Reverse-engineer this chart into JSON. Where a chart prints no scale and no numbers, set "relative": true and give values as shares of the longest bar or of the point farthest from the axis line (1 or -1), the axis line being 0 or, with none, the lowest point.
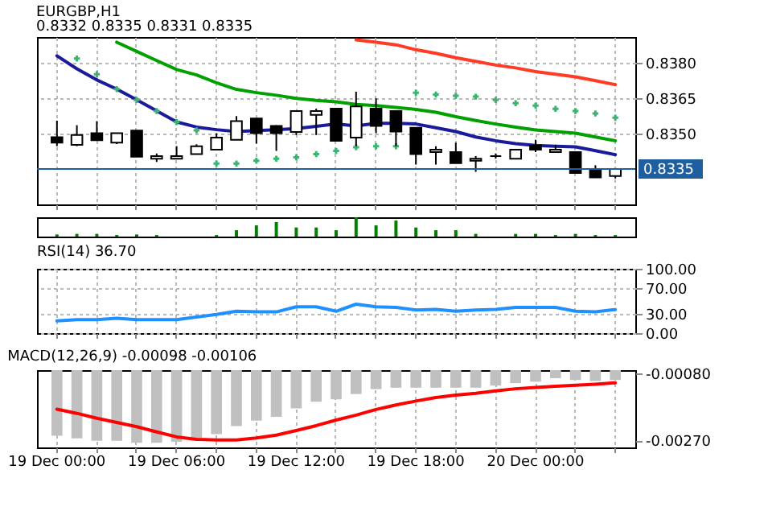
{
  "chart_data": [
    {
      "type": "candlestick",
      "title": "EURGBP,H1",
      "subtitle": "0.8332 0.8335 0.8331 0.8335",
      "categories": [
        null,
        null,
        null,
        null,
        null,
        null,
        null,
        null,
        null,
        null,
        null,
        null,
        null,
        null,
        null,
        null,
        null,
        null,
        null,
        null,
        null,
        null,
        null,
        null,
        null,
        null,
        null,
        null,
        null
      ],
      "ohlc": [
        [
          0.83485,
          0.83555,
          0.83447,
          0.83462
        ],
        [
          0.83453,
          0.83536,
          0.83447,
          0.83494
        ],
        [
          0.83502,
          0.83553,
          0.83472,
          0.83472
        ],
        [
          0.83462,
          0.83502,
          0.83456,
          0.83502
        ],
        [
          0.83513,
          0.83513,
          0.83402,
          0.83402
        ],
        [
          0.83394,
          0.83416,
          0.8338,
          0.83405
        ],
        [
          0.83394,
          0.83447,
          0.83394,
          0.83405
        ],
        [
          0.83413,
          0.83455,
          0.83413,
          0.83447
        ],
        [
          0.83432,
          0.83502,
          0.83432,
          0.83483
        ],
        [
          0.83474,
          0.83575,
          0.83474,
          0.83553
        ],
        [
          0.83564,
          0.83564,
          0.83458,
          0.83502
        ],
        [
          0.83533,
          0.83536,
          0.83427,
          0.83502
        ],
        [
          0.83507,
          0.83596,
          0.83494,
          0.83596
        ],
        [
          0.8358,
          0.83606,
          0.83494,
          0.83596
        ],
        [
          0.83606,
          0.83606,
          0.83466,
          0.8347
        ],
        [
          0.83483,
          0.83678,
          0.83447,
          0.83616
        ],
        [
          0.83606,
          0.8365,
          0.83502,
          0.83533
        ],
        [
          0.83596,
          0.83596,
          0.83447,
          0.83509
        ],
        [
          0.83525,
          0.83525,
          0.83369,
          0.83413
        ],
        [
          0.83422,
          0.83447,
          0.83369,
          0.83432
        ],
        [
          0.83422,
          0.83462,
          0.83375,
          0.83375
        ],
        [
          0.83385,
          0.83405,
          0.83338,
          0.83394
        ],
        [
          0.83405,
          0.83416,
          0.83394,
          0.83405
        ],
        [
          0.83394,
          0.83432,
          0.83394,
          0.83432
        ],
        [
          0.8345,
          0.83474,
          0.83422,
          0.83432
        ],
        [
          0.83422,
          0.83453,
          0.83419,
          0.83432
        ],
        [
          0.83422,
          0.83422,
          0.83333,
          0.83333
        ],
        [
          0.83344,
          0.83366,
          0.83314,
          0.83314
        ],
        [
          0.8332,
          0.8335,
          0.8331,
          0.8335
        ]
      ],
      "series": [
        {
          "type": "line",
          "color": "#1a1a9c",
          "values": [
            0.8383,
            0.83775,
            0.83728,
            0.83689,
            0.83644,
            0.83597,
            0.8355,
            0.83528,
            0.83517,
            0.83509,
            0.83513,
            0.83517,
            0.83522,
            0.83531,
            0.83541,
            0.83533,
            0.83544,
            0.83544,
            0.83541,
            0.83525,
            0.83509,
            0.83486,
            0.8347,
            0.83458,
            0.8345,
            0.83447,
            0.83444,
            0.83428,
            0.83411
          ]
        },
        {
          "type": "line",
          "color": "#00a000",
          "values": [
            null,
            null,
            null,
            0.83888,
            0.83849,
            0.8381,
            0.83772,
            0.83749,
            0.83716,
            0.83688,
            0.83674,
            0.83663,
            0.8365,
            0.83641,
            0.83635,
            0.83624,
            0.83619,
            0.83611,
            0.83603,
            0.83591,
            0.83572,
            0.83556,
            0.83541,
            0.83528,
            0.83516,
            0.83509,
            0.83502,
            0.83486,
            0.8347
          ]
        },
        {
          "type": "line",
          "color": "#ff3b26",
          "values": [
            null,
            null,
            null,
            null,
            null,
            null,
            null,
            null,
            null,
            null,
            null,
            null,
            null,
            null,
            null,
            0.83898,
            0.83888,
            0.83877,
            0.83856,
            0.83841,
            0.83822,
            0.83807,
            0.83791,
            0.83779,
            0.83763,
            0.83752,
            0.83741,
            0.83725,
            0.83708
          ]
        },
        {
          "type": "scatter",
          "marker": "cross",
          "color": "#3cb371",
          "values": [
            null,
            0.83819,
            0.83752,
            0.83689,
            0.83643,
            0.83596,
            0.83549,
            0.83514,
            0.83373,
            0.83373,
            0.83385,
            0.83394,
            0.834,
            0.83413,
            0.83427,
            0.83442,
            0.83447,
            0.83447,
            0.83674,
            0.83666,
            0.83661,
            0.83657,
            0.83643,
            0.83629,
            0.83619,
            0.83605,
            0.83596,
            0.83586,
            0.83568
          ]
        }
      ],
      "ylim": [
        0.832,
        0.8391
      ],
      "yticks": [
        {
          "value": 0.835,
          "label": "0.8350"
        },
        {
          "value": 0.8365,
          "label": "0.8365"
        },
        {
          "value": 0.838,
          "label": "0.8380"
        }
      ],
      "ref_lines": [
        {
          "axis": "y",
          "value": 0.8335,
          "label": "0.8335",
          "color": "#1f5f9f"
        }
      ],
      "grid": true,
      "tick_labels": "y"
    },
    {
      "type": "bar",
      "relative": true,
      "categories": [
        null,
        null,
        null,
        null,
        null,
        null,
        null,
        null,
        null,
        null,
        null,
        null,
        null,
        null,
        null,
        null,
        null,
        null,
        null,
        null,
        null,
        null,
        null,
        null,
        null,
        null,
        null,
        null,
        null
      ],
      "series": [
        {
          "color": "#008000",
          "values": [
            0.11,
            0.14,
            0.14,
            0.08,
            0.11,
            0.08,
            null,
            null,
            0.08,
            0.33,
            0.58,
            0.75,
            0.47,
            0.47,
            0.33,
            1,
            0.58,
            0.83,
            0.47,
            0.33,
            0.33,
            0.14,
            null,
            0.14,
            0.14,
            0.08,
            0.14,
            0.08,
            0.08
          ]
        }
      ],
      "tick_labels": false
    },
    {
      "type": "line",
      "title": "RSI(14) 36.70",
      "categories": [
        null,
        null,
        null,
        null,
        null,
        null,
        null,
        null,
        null,
        null,
        null,
        null,
        null,
        null,
        null,
        null,
        null,
        null,
        null,
        null,
        null,
        null,
        null,
        null,
        null,
        null,
        null,
        null,
        null
      ],
      "series": [
        {
          "color": "#1e90ff",
          "values": [
            19,
            21,
            21,
            23,
            21,
            21,
            21,
            25,
            29,
            34,
            33,
            33,
            41,
            41,
            34,
            45,
            41,
            40,
            36,
            37,
            34,
            36,
            37,
            40,
            40,
            40,
            34,
            33,
            36.7
          ]
        }
      ],
      "ylim": [
        0,
        100
      ],
      "yticks": [
        {
          "value": 0,
          "label": "0.00"
        },
        {
          "value": 30,
          "label": "30.00"
        },
        {
          "value": 70,
          "label": "70.00"
        },
        {
          "value": 100,
          "label": "100.00"
        }
      ],
      "grid": true,
      "tick_labels": "y"
    },
    {
      "type": "bar",
      "title": "MACD(12,26,9) -0.00098 -0.00106",
      "categories": [
        "19 Dec 00:00",
        null,
        null,
        null,
        null,
        null,
        "19 Dec 06:00",
        null,
        null,
        null,
        null,
        null,
        "19 Dec 12:00",
        null,
        null,
        null,
        null,
        null,
        "19 Dec 18:00",
        null,
        null,
        null,
        null,
        null,
        "20 Dec 00:00",
        null,
        null,
        null,
        null
      ],
      "series": [
        {
          "type": "bar",
          "color": "#c0c0c0",
          "values": [
            -0.00257,
            -0.00264,
            -0.00271,
            -0.00271,
            -0.00277,
            -0.00277,
            -0.00274,
            -0.00264,
            -0.00252,
            -0.00229,
            -0.00214,
            -0.00203,
            -0.00179,
            -0.0016,
            -0.00153,
            -0.00138,
            -0.00124,
            -0.0012,
            -0.0012,
            -0.0012,
            -0.0012,
            -0.0012,
            -0.00114,
            -0.00107,
            -0.00103,
            -0.00093,
            -0.00098,
            -0.00101,
            -0.00098
          ]
        },
        {
          "type": "line",
          "color": "#ff0000",
          "values": [
            -0.00181,
            -0.00193,
            -0.00207,
            -0.00219,
            -0.00231,
            -0.00246,
            -0.0026,
            -0.00267,
            -0.00269,
            -0.00269,
            -0.00263,
            -0.00255,
            -0.00242,
            -0.00228,
            -0.00212,
            -0.00198,
            -0.00182,
            -0.00169,
            -0.00158,
            -0.00148,
            -0.00141,
            -0.00136,
            -0.00129,
            -0.00123,
            -0.00119,
            -0.00116,
            -0.00113,
            -0.0011,
            -0.00106
          ]
        }
      ],
      "ylim": [
        -0.0029,
        -0.0007
      ],
      "yticks": [
        {
          "value": -0.0027,
          "label": "-0.00270"
        },
        {
          "value": -0.0008,
          "label": "-0.00080"
        }
      ],
      "grid": "x"
    }
  ]
}
